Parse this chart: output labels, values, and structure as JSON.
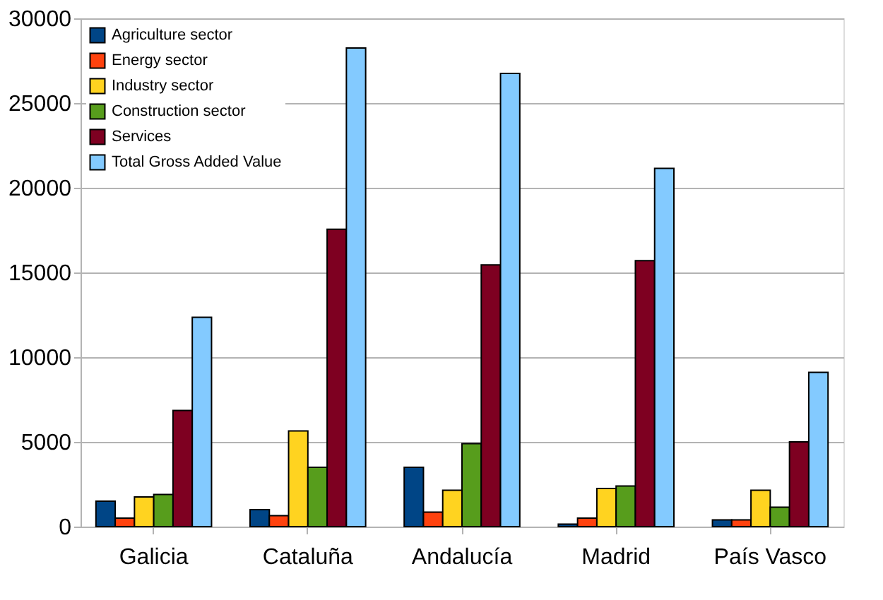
{
  "chart_data": {
    "type": "bar",
    "categories": [
      "Galicia",
      "Cataluña",
      "Andalucía",
      "Madrid",
      "País Vasco"
    ],
    "series": [
      {
        "name": "Agriculture sector",
        "color": "#004586",
        "values": [
          1500,
          1000,
          3500,
          150,
          400
        ]
      },
      {
        "name": "Energy sector",
        "color": "#ff420e",
        "values": [
          500,
          650,
          850,
          500,
          400
        ]
      },
      {
        "name": "Industry sector",
        "color": "#ffd320",
        "values": [
          1750,
          5650,
          2150,
          2250,
          2150
        ]
      },
      {
        "name": "Construction sector",
        "color": "#579d1c",
        "values": [
          1900,
          3500,
          4900,
          2400,
          1150
        ]
      },
      {
        "name": "Services",
        "color": "#7e0021",
        "values": [
          6850,
          17550,
          15450,
          15700,
          5000
        ]
      },
      {
        "name": "Total Gross Added Value",
        "color": "#83caff",
        "values": [
          12350,
          28250,
          26750,
          21150,
          9100
        ]
      }
    ],
    "ylim": [
      0,
      30000
    ],
    "yticks": [
      0,
      5000,
      10000,
      15000,
      20000,
      25000,
      30000
    ],
    "grid": "y",
    "legend": "top left"
  }
}
